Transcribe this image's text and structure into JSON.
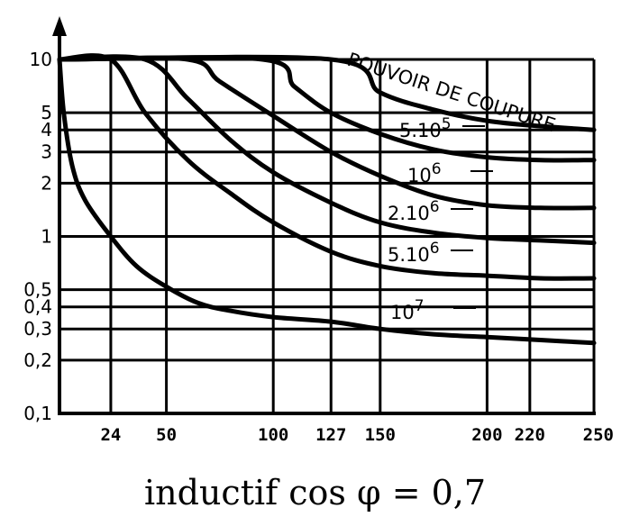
{
  "chart_data": {
    "type": "line",
    "title": "",
    "xlabel": "",
    "ylabel": "",
    "caption": "inductif cos φ  =  0,7",
    "x_scale": "linear",
    "y_scale": "log",
    "xlim": [
      0,
      250
    ],
    "ylim": [
      0.1,
      10
    ],
    "x_ticks": [
      {
        "value": 24,
        "label": "24"
      },
      {
        "value": 50,
        "label": "50"
      },
      {
        "value": 100,
        "label": "100"
      },
      {
        "value": 127,
        "label": "127"
      },
      {
        "value": 150,
        "label": "150"
      },
      {
        "value": 200,
        "label": "200"
      },
      {
        "value": 220,
        "label": "220"
      },
      {
        "value": 250,
        "label": "250"
      }
    ],
    "y_ticks": [
      {
        "value": 10,
        "label": "10"
      },
      {
        "value": 5,
        "label": "5"
      },
      {
        "value": 4,
        "label": "4"
      },
      {
        "value": 3,
        "label": "3"
      },
      {
        "value": 2,
        "label": "2"
      },
      {
        "value": 1,
        "label": "1"
      },
      {
        "value": 0.5,
        "label": "0,5"
      },
      {
        "value": 0.4,
        "label": "0,4"
      },
      {
        "value": 0.3,
        "label": "0,3"
      },
      {
        "value": 0.2,
        "label": "0,2"
      },
      {
        "value": 0.1,
        "label": "0,1"
      }
    ],
    "grid": true,
    "curve_title": "POUVOIR DE COUPURE",
    "series": [
      {
        "mant": "5.10",
        "exp": "5",
        "points": [
          [
            0,
            10
          ],
          [
            127,
            10
          ],
          [
            150,
            6.5
          ],
          [
            175,
            5.2
          ],
          [
            200,
            4.5
          ],
          [
            225,
            4.2
          ],
          [
            250,
            4
          ]
        ]
      },
      {
        "mant": "10",
        "exp": "6",
        "points": [
          [
            0,
            10
          ],
          [
            95,
            10
          ],
          [
            110,
            7
          ],
          [
            127,
            5
          ],
          [
            150,
            3.8
          ],
          [
            175,
            3.1
          ],
          [
            200,
            2.8
          ],
          [
            225,
            2.7
          ],
          [
            250,
            2.7
          ]
        ]
      },
      {
        "mant": "",
        "exp": "",
        "points": [
          [
            0,
            10
          ],
          [
            60,
            10
          ],
          [
            75,
            7.5
          ],
          [
            100,
            4.8
          ],
          [
            127,
            3
          ],
          [
            150,
            2.2
          ],
          [
            175,
            1.7
          ],
          [
            200,
            1.5
          ],
          [
            225,
            1.45
          ],
          [
            250,
            1.45
          ]
        ]
      },
      {
        "mant": "2.10",
        "exp": "6",
        "points": [
          [
            0,
            10
          ],
          [
            40,
            10
          ],
          [
            60,
            6
          ],
          [
            80,
            3.5
          ],
          [
            100,
            2.3
          ],
          [
            127,
            1.55
          ],
          [
            150,
            1.2
          ],
          [
            175,
            1.05
          ],
          [
            200,
            0.98
          ],
          [
            225,
            0.95
          ],
          [
            250,
            0.92
          ]
        ]
      },
      {
        "mant": "5.10",
        "exp": "6",
        "points": [
          [
            0,
            10
          ],
          [
            24,
            10
          ],
          [
            40,
            5
          ],
          [
            60,
            2.7
          ],
          [
            80,
            1.75
          ],
          [
            100,
            1.2
          ],
          [
            127,
            0.82
          ],
          [
            150,
            0.68
          ],
          [
            175,
            0.62
          ],
          [
            200,
            0.6
          ],
          [
            225,
            0.58
          ],
          [
            250,
            0.58
          ]
        ]
      },
      {
        "mant": "10",
        "exp": "7",
        "points": [
          [
            0,
            10
          ],
          [
            2,
            5
          ],
          [
            6,
            2.5
          ],
          [
            12,
            1.6
          ],
          [
            24,
            1
          ],
          [
            36,
            0.68
          ],
          [
            50,
            0.52
          ],
          [
            65,
            0.42
          ],
          [
            80,
            0.38
          ],
          [
            100,
            0.35
          ],
          [
            127,
            0.33
          ],
          [
            150,
            0.3
          ],
          [
            175,
            0.28
          ],
          [
            200,
            0.27
          ],
          [
            225,
            0.26
          ],
          [
            250,
            0.25
          ]
        ]
      }
    ]
  }
}
